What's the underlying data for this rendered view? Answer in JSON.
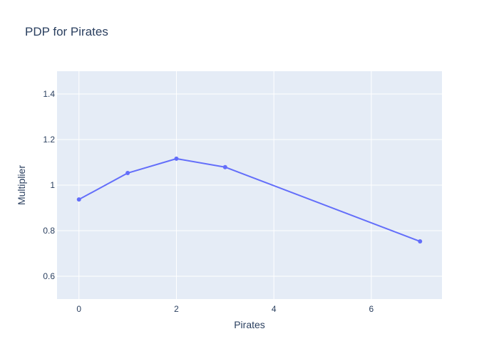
{
  "chart_data": {
    "type": "line",
    "title": "PDP for Pirates",
    "xlabel": "Pirates",
    "ylabel": "Multiplier",
    "x_ticks": [
      0,
      2,
      4,
      6
    ],
    "y_ticks": [
      0.6,
      0.8,
      1,
      1.2,
      1.4
    ],
    "x_tick_labels": [
      "0",
      "2",
      "4",
      "6"
    ],
    "y_tick_labels": [
      "0.6",
      "0.8",
      "1",
      "1.2",
      "1.4"
    ],
    "xlim": [
      -0.45,
      7.45
    ],
    "ylim": [
      0.5,
      1.5
    ],
    "grid": true,
    "series": [
      {
        "x": [
          0,
          1,
          2,
          3,
          7
        ],
        "y": [
          0.937,
          1.053,
          1.116,
          1.079,
          0.753
        ]
      }
    ]
  },
  "colors": {
    "plot_background": "#e5ecf6",
    "grid": "#ffffff",
    "line": "#636efa",
    "text": "#2a3f5f"
  }
}
